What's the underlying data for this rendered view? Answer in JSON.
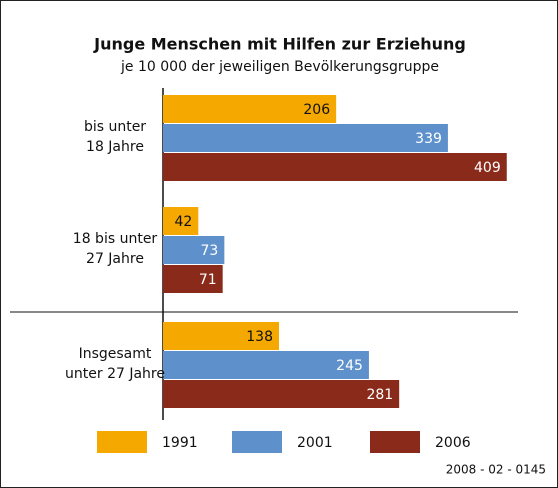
{
  "chart_data": {
    "type": "barh",
    "title": "Junge Menschen mit Hilfen zur Erziehung",
    "subtitle": "je 10 000 der jeweiligen Bevölkerungsgruppe",
    "categories": [
      "bis unter\n18 Jahre",
      "18 bis unter\n27 Jahre",
      "Insgesamt\nunter 27 Jahre"
    ],
    "series": [
      {
        "name": "1991",
        "color": "#f5a800",
        "values": [
          206,
          42,
          138
        ]
      },
      {
        "name": "2001",
        "color": "#5e91cb",
        "values": [
          339,
          73,
          245
        ]
      },
      {
        "name": "2006",
        "color": "#8a2a1b",
        "values": [
          409,
          71,
          281
        ]
      }
    ],
    "xlim": [
      0,
      420
    ],
    "footnote": "2008 - 02 - 0145"
  }
}
